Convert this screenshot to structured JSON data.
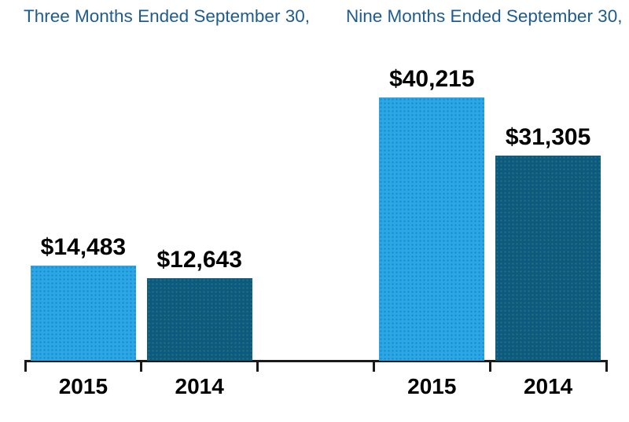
{
  "title": {
    "left": "Three Months Ended September 30,",
    "right": "Nine Months Ended September 30,"
  },
  "colors": {
    "title_text": "#1E5C8F",
    "axis": "#1A1A1A",
    "value_label_text": "#000000",
    "bar_2015": "#2BA7E5",
    "bar_2014": "#0D5A81"
  },
  "chart_data": {
    "type": "bar",
    "title": "Three Months Ended September 30,  Nine Months Ended September 30,",
    "groups": [
      {
        "period": "Three Months Ended September 30",
        "bars": [
          {
            "year": "2015",
            "value": 14483,
            "label": "$14,483"
          },
          {
            "year": "2014",
            "value": 12643,
            "label": "$12,643"
          }
        ]
      },
      {
        "period": "Nine Months Ended September 30",
        "bars": [
          {
            "year": "2015",
            "value": 40215,
            "label": "$40,215"
          },
          {
            "year": "2014",
            "value": 31305,
            "label": "$31,305"
          }
        ]
      }
    ],
    "categories": [
      "2015",
      "2014",
      "2015",
      "2014"
    ],
    "values": [
      14483,
      12643,
      40215,
      31305
    ],
    "value_labels": [
      "$14,483",
      "$12,643",
      "$40,215",
      "$31,305"
    ],
    "series_colors": {
      "2015": "#2BA7E5",
      "2014": "#0D5A81"
    },
    "xlabel": "",
    "ylabel": "",
    "ylim": [
      0,
      40215
    ],
    "grid": false,
    "legend": false
  }
}
